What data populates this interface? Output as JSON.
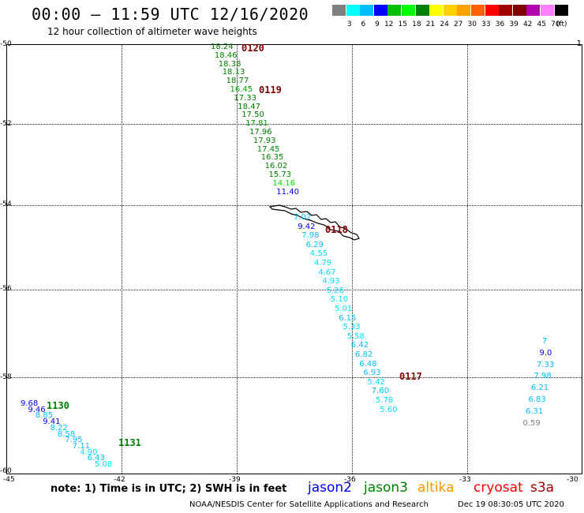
{
  "header": {
    "title": "00:00 – 11:59 UTC 12/16/2020",
    "subtitle": "12 hour collection of altimeter wave heights"
  },
  "legend": {
    "colors": [
      "#7f7f7f",
      "#00ffff",
      "#00bfff",
      "#0000ff",
      "#00c000",
      "#00ff00",
      "#008000",
      "#ffff00",
      "#ffd000",
      "#ffa000",
      "#ff6000",
      "#ff0000",
      "#a00000",
      "#800000",
      "#b000b0",
      "#ff80ff",
      "#000000"
    ],
    "levels": [
      "3",
      "6",
      "9",
      "12",
      "15",
      "18",
      "21",
      "24",
      "27",
      "30",
      "33",
      "36",
      "39",
      "42",
      "45",
      "70"
    ],
    "unit": "(ft)"
  },
  "axes": {
    "lat_labels": [
      "-50",
      "-52",
      "-54",
      "-56",
      "-58",
      "-60"
    ],
    "lon_labels": [
      "-45",
      "-42",
      "-39",
      "-36",
      "-33",
      "-30"
    ]
  },
  "passes": {
    "p0120": "0120",
    "p0119": "0119",
    "p0118": "0118",
    "p0117": "0117",
    "p1130": "1130",
    "p1131": "1131"
  },
  "track_0120": [
    {
      "v": "18.24",
      "c": "#008000"
    },
    {
      "v": "18.46",
      "c": "#008000"
    },
    {
      "v": "18.38",
      "c": "#008000"
    },
    {
      "v": "18.13",
      "c": "#008000"
    },
    {
      "v": "18.77",
      "c": "#008000"
    },
    {
      "v": "16.45",
      "c": "#00a000"
    },
    {
      "v": "17.33",
      "c": "#008000"
    },
    {
      "v": "18.47",
      "c": "#008000"
    },
    {
      "v": "17.50",
      "c": "#008000"
    },
    {
      "v": "17.81",
      "c": "#00a000"
    },
    {
      "v": "17.96",
      "c": "#008000"
    },
    {
      "v": "17.93",
      "c": "#008000"
    },
    {
      "v": "17.45",
      "c": "#008000"
    },
    {
      "v": "16.35",
      "c": "#008000"
    },
    {
      "v": "16.02",
      "c": "#008000"
    },
    {
      "v": "15.73",
      "c": "#008000"
    },
    {
      "v": "14.16",
      "c": "#00ee00"
    },
    {
      "v": "11.40",
      "c": "#0000ff"
    }
  ],
  "track_0118": [
    {
      "v": "7.02",
      "c": "#00bfff"
    },
    {
      "v": "9.42",
      "c": "#0000ff"
    },
    {
      "v": "7.98",
      "c": "#00bfff"
    },
    {
      "v": "6.29",
      "c": "#00bfff"
    },
    {
      "v": "4.55",
      "c": "#00e0ff"
    },
    {
      "v": "4.79",
      "c": "#00e0ff"
    },
    {
      "v": "4.67",
      "c": "#00e0ff"
    },
    {
      "v": "4.93",
      "c": "#00e0ff"
    },
    {
      "v": "5.26",
      "c": "#00e0ff"
    },
    {
      "v": "5.10",
      "c": "#00e0ff"
    },
    {
      "v": "5.01",
      "c": "#00e0ff"
    },
    {
      "v": "6.15",
      "c": "#00bfff"
    },
    {
      "v": "5.33",
      "c": "#00e0ff"
    },
    {
      "v": "5.58",
      "c": "#00e0ff"
    },
    {
      "v": "6.42",
      "c": "#00bfff"
    },
    {
      "v": "6.82",
      "c": "#00bfff"
    },
    {
      "v": "6.48",
      "c": "#00bfff"
    },
    {
      "v": "6.93",
      "c": "#00bfff"
    },
    {
      "v": "5.42",
      "c": "#00e0ff"
    },
    {
      "v": "7.60",
      "c": "#00bfff"
    },
    {
      "v": "5.78",
      "c": "#00e0ff"
    },
    {
      "v": "5.60",
      "c": "#00e0ff"
    }
  ],
  "track_1130": [
    {
      "v": "9.68",
      "c": "#0000ff"
    },
    {
      "v": "9.46",
      "c": "#0000ff"
    },
    {
      "v": "8.85",
      "c": "#00bfff"
    },
    {
      "v": "9.41",
      "c": "#0000ff"
    },
    {
      "v": "8.22",
      "c": "#00bfff"
    },
    {
      "v": "8.58",
      "c": "#00bfff"
    },
    {
      "v": "7.95",
      "c": "#00bfff"
    },
    {
      "v": "7.11",
      "c": "#00bfff"
    },
    {
      "v": "4.90",
      "c": "#00e0ff"
    },
    {
      "v": "6.43",
      "c": "#00bfff"
    },
    {
      "v": "5.08",
      "c": "#00e0ff"
    }
  ],
  "track_right": [
    {
      "v": "7",
      "c": "#00bfff"
    },
    {
      "v": "9.0",
      "c": "#0000ff"
    },
    {
      "v": "7.33",
      "c": "#00bfff"
    },
    {
      "v": "7.98",
      "c": "#00bfff"
    },
    {
      "v": "6.21",
      "c": "#00bfff"
    },
    {
      "v": "6.83",
      "c": "#00bfff"
    },
    {
      "v": "6.31",
      "c": "#00bfff"
    },
    {
      "v": "0.59",
      "c": "#7f7f7f"
    }
  ],
  "topright_value": "1",
  "footer": {
    "note": "note: 1) Time is in UTC; 2) SWH is in feet",
    "sats": [
      {
        "name": "jason2",
        "color": "#0000ff"
      },
      {
        "name": "jason3",
        "color": "#008000"
      },
      {
        "name": "altika",
        "color": "#ff9900"
      },
      {
        "name": "cryosat",
        "color": "#ff0000"
      },
      {
        "name": "s3a",
        "color": "#a00000"
      }
    ],
    "credit": "NOAA/NESDIS Center for Satellite Applications and Research",
    "timestamp": "Dec 19 08:30:05 UTC 2020"
  }
}
